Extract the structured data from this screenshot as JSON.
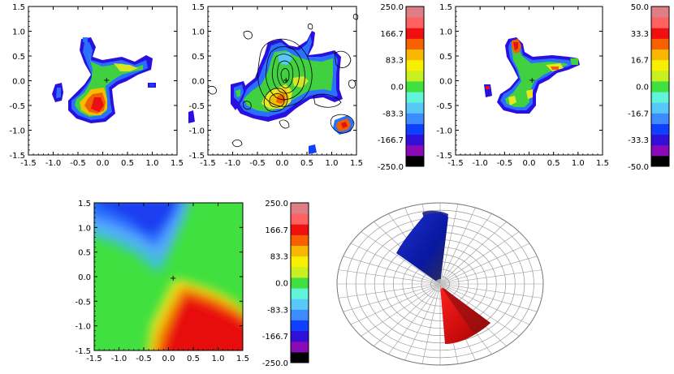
{
  "chart_data": [
    {
      "type": "heatmap",
      "title": "",
      "description_role": "velocity map panel 1 (observed)",
      "xlim": [
        -1.5,
        1.5
      ],
      "ylim": [
        -1.5,
        1.5
      ],
      "xticks": [
        "-1.5",
        "-1.0",
        "-0.5",
        "0.0",
        "0.5",
        "1.0",
        "1.5"
      ],
      "yticks": [
        "-1.5",
        "-1.0",
        "-0.5",
        "0.0",
        "0.5",
        "1.0",
        "1.5"
      ],
      "center_marker": [
        0.0,
        0.0
      ]
    },
    {
      "type": "heatmap",
      "title": "",
      "description_role": "velocity map panel 2 with contours",
      "xlim": [
        -1.5,
        1.5
      ],
      "ylim": [
        -1.5,
        1.5
      ],
      "xticks": [
        "-1.5",
        "-1.0",
        "-0.5",
        "0.0",
        "0.5",
        "1.0",
        "1.5"
      ],
      "yticks": [
        "-1.5",
        "-1.0",
        "-0.5",
        "0.0",
        "0.5",
        "1.0",
        "1.5"
      ],
      "colorbar": {
        "ticks": [
          "250.0",
          "166.7",
          "83.3",
          "0.0",
          "-83.3",
          "-166.7",
          "-250.0"
        ],
        "range": [
          -250.0,
          250.0
        ]
      }
    },
    {
      "type": "heatmap",
      "title": "",
      "description_role": "dispersion map panel 3",
      "xlim": [
        -1.5,
        1.5
      ],
      "ylim": [
        -1.5,
        1.5
      ],
      "xticks": [
        "-1.5",
        "-1.0",
        "-0.5",
        "0.0",
        "0.5",
        "1.0",
        "1.5"
      ],
      "yticks": [
        "-1.5",
        "-1.0",
        "-0.5",
        "0.0",
        "0.5",
        "1.0",
        "1.5"
      ],
      "colorbar": {
        "ticks": [
          "50.0",
          "33.3",
          "16.7",
          "0.0",
          "-16.7",
          "-33.3",
          "-50.0"
        ],
        "range": [
          -50.0,
          50.0
        ]
      }
    },
    {
      "type": "heatmap",
      "title": "",
      "description_role": "model velocity map",
      "xlim": [
        -1.5,
        1.5
      ],
      "ylim": [
        -1.5,
        1.5
      ],
      "xticks": [
        "-1.5",
        "-1.0",
        "-0.5",
        "0.0",
        "0.5",
        "1.0",
        "1.5"
      ],
      "yticks": [
        "-1.5",
        "-1.0",
        "-0.5",
        "0.0",
        "0.5",
        "1.0",
        "1.5"
      ],
      "colorbar": {
        "ticks": [
          "250.0",
          "166.7",
          "83.3",
          "0.0",
          "-83.3",
          "-166.7",
          "-250.0"
        ],
        "range": [
          -250.0,
          250.0
        ]
      }
    },
    {
      "type": "other",
      "description_role": "3D bicone model on polar grid",
      "cone_colors": [
        "#1a2ad0",
        "#e01010"
      ]
    }
  ],
  "colors": {
    "palette": [
      "#000000",
      "#8a0ab8",
      "#3010d8",
      "#1040ff",
      "#3c8cff",
      "#58c8f8",
      "#60f4d8",
      "#40e040",
      "#c8f020",
      "#f8f000",
      "#f8b800",
      "#f86000",
      "#f01010",
      "#ff6060",
      "#e07e86"
    ]
  }
}
